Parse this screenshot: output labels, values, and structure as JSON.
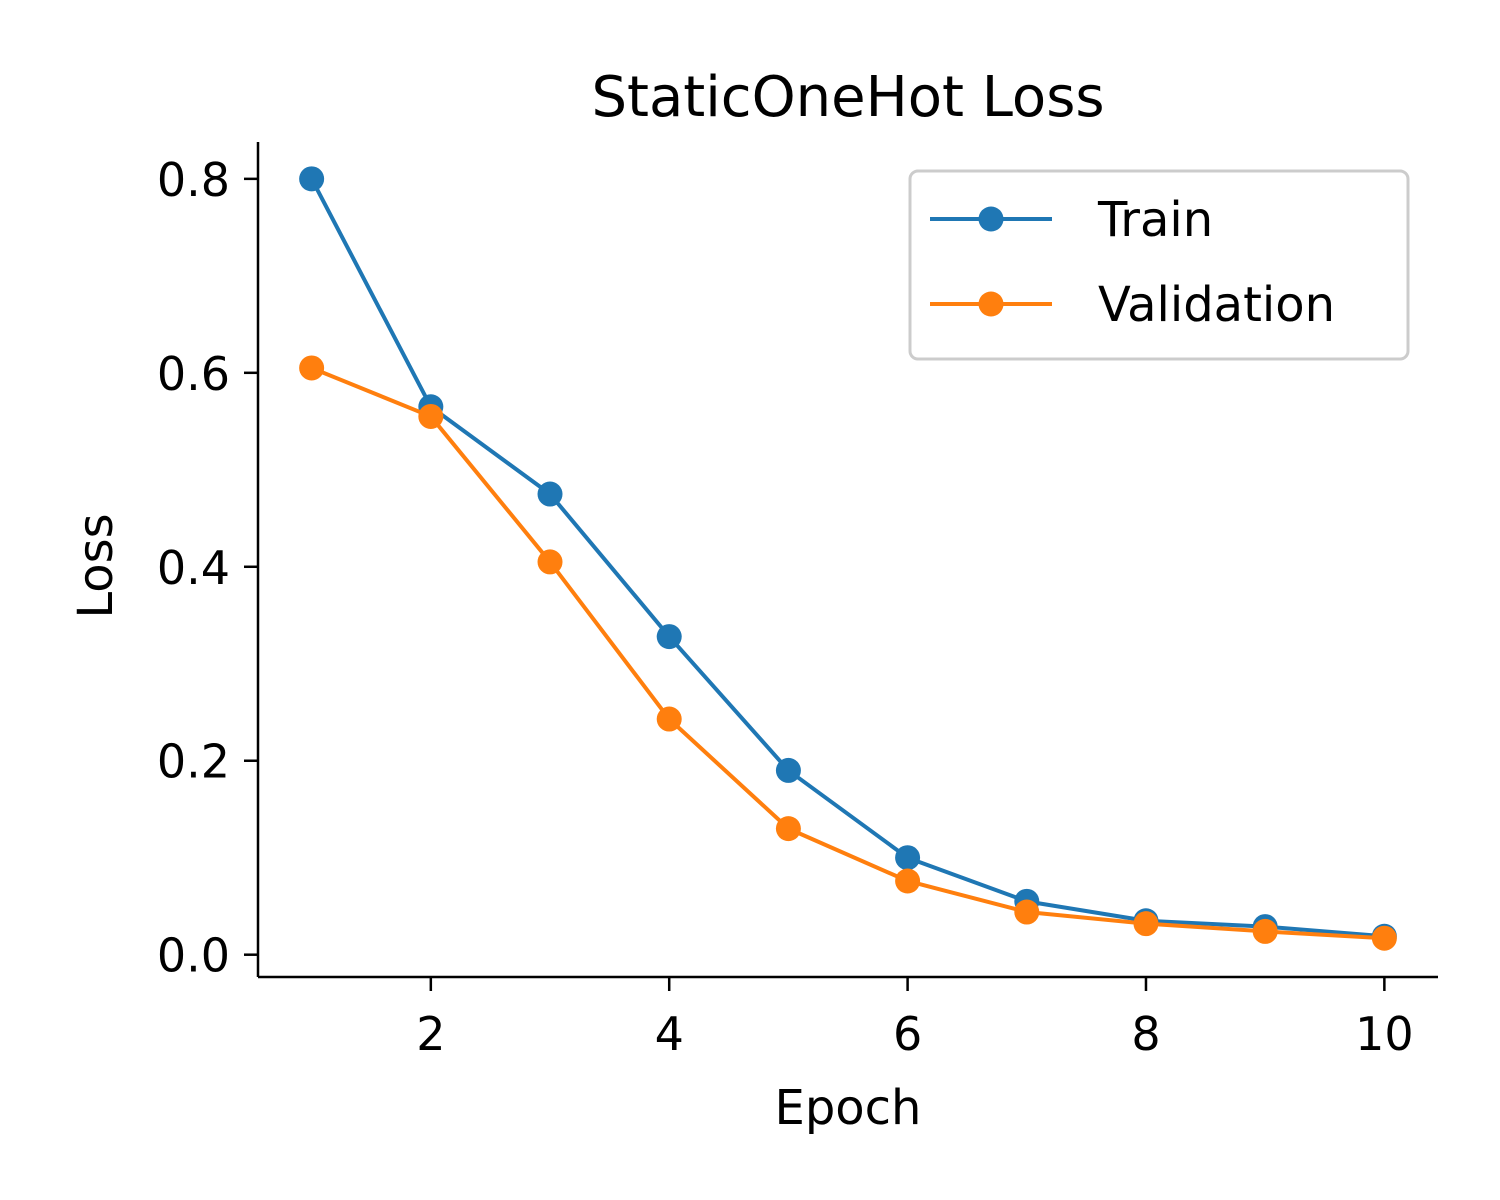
{
  "chart_data": {
    "type": "line",
    "title": "StaticOneHot Loss",
    "xlabel": "Epoch",
    "ylabel": "Loss",
    "x": [
      1,
      2,
      3,
      4,
      5,
      6,
      7,
      8,
      9,
      10
    ],
    "xlim": [
      0.55,
      10.45
    ],
    "ylim": [
      -0.023,
      0.838
    ],
    "xticks": [
      2,
      4,
      6,
      8,
      10
    ],
    "yticks": [
      0.0,
      0.2,
      0.4,
      0.6,
      0.8
    ],
    "xtick_labels": [
      "2",
      "4",
      "6",
      "8",
      "10"
    ],
    "ytick_labels": [
      "0.0",
      "0.2",
      "0.4",
      "0.6",
      "0.8"
    ],
    "grid": false,
    "legend_position": "top-right",
    "series": [
      {
        "name": "Train",
        "color": "#1f77b4",
        "marker": "circle",
        "values": [
          0.8,
          0.565,
          0.475,
          0.328,
          0.19,
          0.1,
          0.055,
          0.035,
          0.029,
          0.019
        ]
      },
      {
        "name": "Validation",
        "color": "#ff7f0e",
        "marker": "circle",
        "values": [
          0.605,
          0.555,
          0.405,
          0.243,
          0.13,
          0.076,
          0.044,
          0.032,
          0.024,
          0.017
        ]
      }
    ]
  }
}
